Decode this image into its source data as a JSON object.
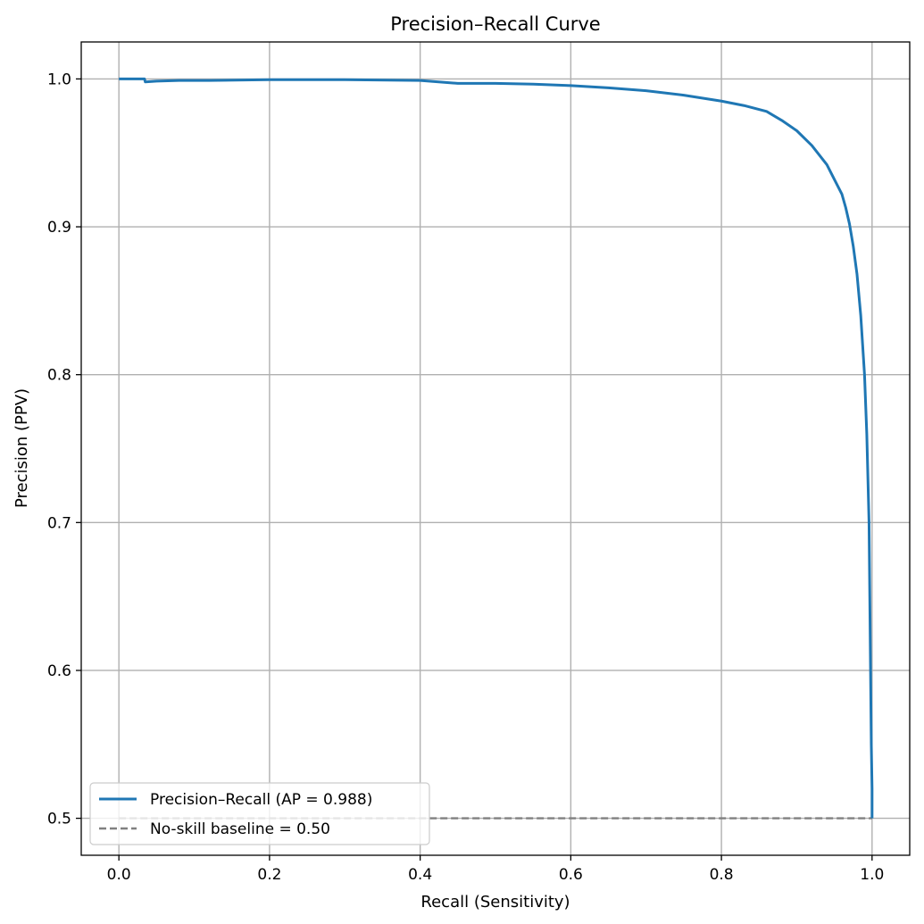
{
  "chart_data": {
    "type": "line",
    "title": "Precision–Recall Curve",
    "xlabel": "Recall (Sensitivity)",
    "ylabel": "Precision (PPV)",
    "xlim": [
      -0.05,
      1.05
    ],
    "ylim": [
      0.475,
      1.025
    ],
    "xticks": [
      "0.0",
      "0.2",
      "0.4",
      "0.6",
      "0.8",
      "1.0"
    ],
    "yticks": [
      "0.5",
      "0.6",
      "0.7",
      "0.8",
      "0.9",
      "1.0"
    ],
    "grid": true,
    "legend_position": "lower-left",
    "series": [
      {
        "name": "Precision–Recall (AP = 0.988)",
        "color": "#1f77b4",
        "style": "solid",
        "x": [
          0.0,
          0.034,
          0.035,
          0.05,
          0.08,
          0.12,
          0.2,
          0.3,
          0.4,
          0.45,
          0.5,
          0.55,
          0.6,
          0.65,
          0.7,
          0.75,
          0.8,
          0.83,
          0.86,
          0.88,
          0.9,
          0.92,
          0.94,
          0.95,
          0.96,
          0.965,
          0.97,
          0.975,
          0.98,
          0.985,
          0.99,
          0.993,
          0.996,
          0.998,
          0.999,
          1.0,
          1.0
        ],
        "y": [
          1.0,
          1.0,
          0.998,
          0.9985,
          0.999,
          0.999,
          0.9995,
          0.9995,
          0.999,
          0.997,
          0.997,
          0.9965,
          0.9955,
          0.994,
          0.992,
          0.989,
          0.985,
          0.982,
          0.978,
          0.972,
          0.965,
          0.955,
          0.942,
          0.932,
          0.922,
          0.913,
          0.902,
          0.887,
          0.868,
          0.84,
          0.8,
          0.76,
          0.7,
          0.6,
          0.55,
          0.52,
          0.5
        ]
      },
      {
        "name": "No-skill baseline = 0.50",
        "color": "#808080",
        "style": "dashed",
        "x": [
          0.0,
          1.0
        ],
        "y": [
          0.5,
          0.5
        ]
      }
    ]
  }
}
